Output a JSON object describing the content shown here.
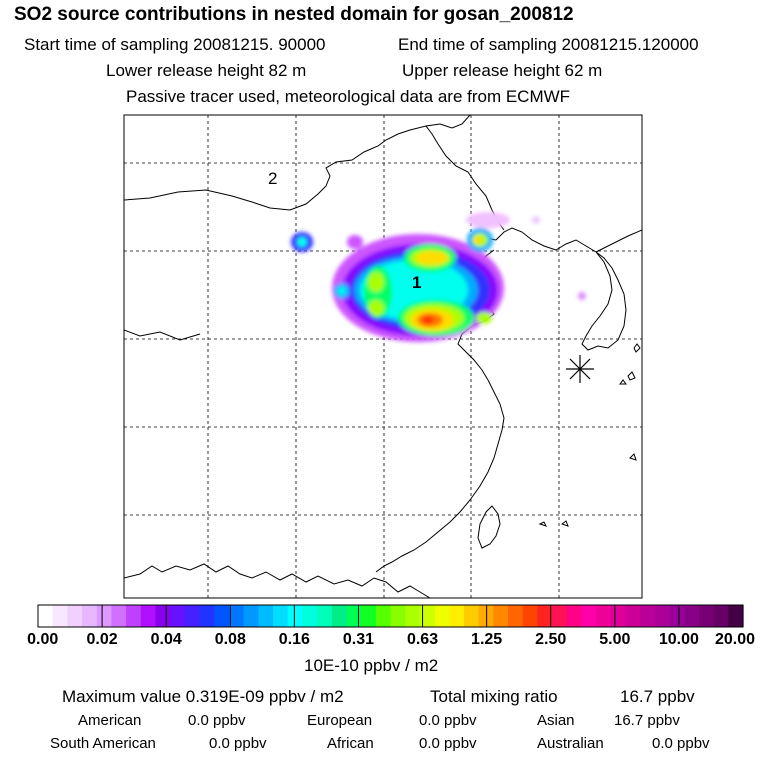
{
  "title": "SO2 source contributions in nested domain for gosan_200812",
  "start_label": "Start time of sampling 20081215. 90000",
  "end_label": "End time of sampling 20081215.120000",
  "lower_label": "Lower release height   82 m",
  "upper_label": "Upper release height   62 m",
  "info_line": "Passive tracer used, meteorological data are from ECMWF",
  "map": {
    "region_label_1": "1",
    "region_label_2": "2",
    "receptor_marker": "asterisk",
    "plume_colors": [
      "#f0c0ff",
      "#cc55ff",
      "#8800ff",
      "#3333ff",
      "#00aaff",
      "#00ffee",
      "#00ff66",
      "#aaff00",
      "#ffdd00",
      "#ff7700",
      "#ff3300"
    ]
  },
  "colorbar": {
    "tick_labels": [
      "0.00",
      "0.02",
      "0.04",
      "0.08",
      "0.16",
      "0.31",
      "0.63",
      "1.25",
      "2.50",
      "5.00",
      "10.00",
      "20.00"
    ],
    "colors": [
      "#ffffff",
      "#f8e8ff",
      "#f0d0ff",
      "#e8b8ff",
      "#dd99ff",
      "#d070ff",
      "#c040ff",
      "#b010ff",
      "#8800ee",
      "#6611ff",
      "#4422ff",
      "#2233ff",
      "#0055ff",
      "#0077ff",
      "#0099ff",
      "#00bbff",
      "#00ddff",
      "#00ffff",
      "#00ffdd",
      "#00ffbb",
      "#00ee88",
      "#00ff55",
      "#11ff22",
      "#55ff00",
      "#88ff00",
      "#aaff00",
      "#ccff00",
      "#eeff00",
      "#ffee00",
      "#ffcc00",
      "#ffaa00",
      "#ff8800",
      "#ff6600",
      "#ff4400",
      "#ff2222",
      "#ff1155",
      "#ff0088",
      "#ff00aa",
      "#ee0099",
      "#dd0099",
      "#cc0099",
      "#bb0099",
      "#aa0099",
      "#990099",
      "#880088",
      "#770077",
      "#660066",
      "#440044"
    ],
    "unit": "10E-10 ppbv / m2"
  },
  "stats": {
    "max_value": "Maximum value  0.319E-09 ppbv / m2",
    "total_mixing": "Total mixing ratio",
    "total_mixing_value": "16.7 ppbv",
    "american_label": "American",
    "american_value": "0.0 ppbv",
    "european_label": "European",
    "european_value": "0.0 ppbv",
    "asian_label": "Asian",
    "asian_value": "16.7 ppbv",
    "south_american_label": "South American",
    "south_american_value": "0.0 ppbv",
    "african_label": "African",
    "african_value": "0.0 ppbv",
    "australian_label": "Australian",
    "australian_value": "0.0 ppbv"
  }
}
